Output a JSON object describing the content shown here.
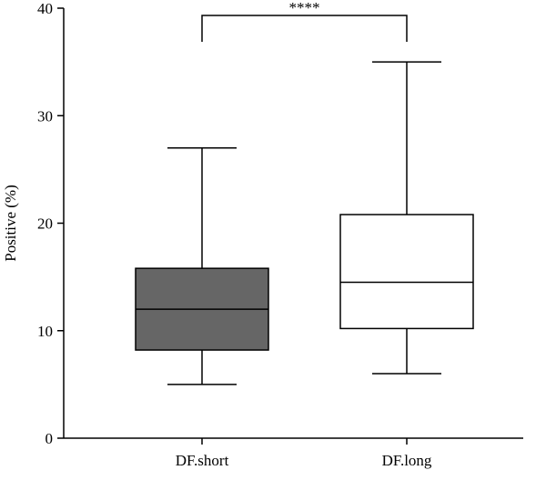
{
  "chart_data": {
    "type": "box",
    "title": "",
    "xlabel": "",
    "ylabel": "Positive (%)",
    "ylim": [
      0,
      40
    ],
    "yticks": [
      "0",
      "10",
      "20",
      "30",
      "40"
    ],
    "grid": false,
    "categories": [
      "DF.short",
      "DF.long"
    ],
    "boxes": [
      {
        "category": "DF.short",
        "min": 5,
        "q1": 8.2,
        "median": 12,
        "q3": 15.8,
        "max": 27,
        "fill": "#666666"
      },
      {
        "category": "DF.long",
        "min": 6,
        "q1": 10.2,
        "median": 14.5,
        "q3": 20.8,
        "max": 35,
        "fill": "#ffffff"
      }
    ],
    "annotations": [
      {
        "type": "significance-bracket",
        "from": "DF.short",
        "to": "DF.long",
        "label": "****"
      }
    ]
  }
}
